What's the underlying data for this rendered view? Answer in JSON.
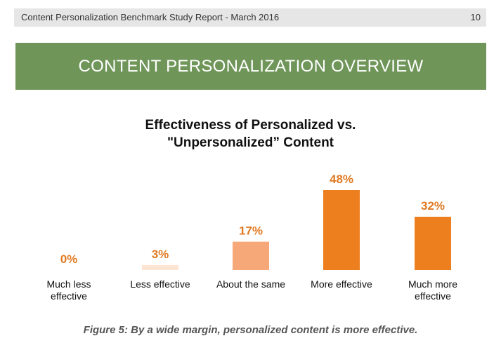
{
  "header": {
    "title": "Content Personalization Benchmark Study Report  - March 2016",
    "page_number": "10"
  },
  "banner": {
    "text": "CONTENT PERSONALIZATION OVERVIEW",
    "color": "#6f9559"
  },
  "chart_data": {
    "type": "bar",
    "title_lines": [
      "Effectiveness of Personalized vs.",
      "\"Unpersonalized” Content"
    ],
    "categories": [
      [
        "Much less",
        "effective"
      ],
      [
        "Less effective"
      ],
      [
        "About the same"
      ],
      [
        "More effective"
      ],
      [
        "Much more",
        "effective"
      ]
    ],
    "values": [
      0,
      3,
      17,
      48,
      32
    ],
    "value_labels": [
      "0%",
      "3%",
      "17%",
      "48%",
      "32%"
    ],
    "colors": [
      "#fde4d3",
      "#fde4d3",
      "#f7a878",
      "#ee7f1e",
      "#ee7f1e"
    ],
    "label_color": "#e07a22",
    "ylim": [
      0,
      48
    ]
  },
  "caption": "Figure 5: By a wide margin, personalized content is more effective."
}
